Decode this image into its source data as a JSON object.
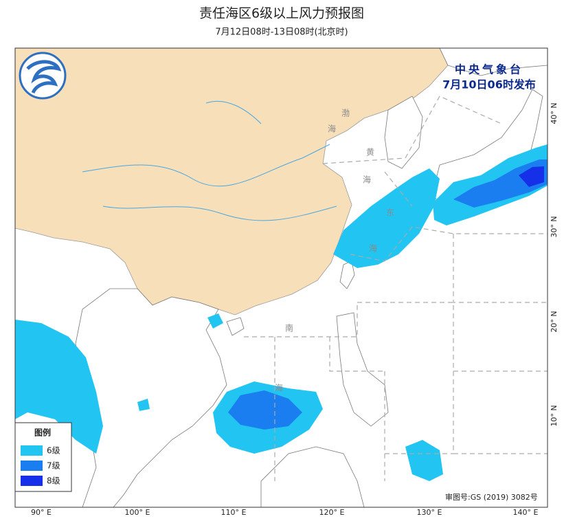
{
  "header": {
    "title": "责任海区6级以上风力预报图",
    "subtitle": "7月12日08时-13日08时(北京时)"
  },
  "issuer": {
    "name": "中央气象台",
    "time": "7月10日06时发布"
  },
  "legend": {
    "title": "图例",
    "items": [
      {
        "label": "6级",
        "color": "#22c4f2"
      },
      {
        "label": "7级",
        "color": "#1a7ef0"
      },
      {
        "label": "8级",
        "color": "#1530e8"
      }
    ]
  },
  "sea_labels": [
    "渤",
    "海",
    "黄",
    "海",
    "东",
    "海",
    "南",
    "海"
  ],
  "lat_labels": [
    "40° N",
    "30° N",
    "20° N",
    "10° N"
  ],
  "lon_labels": [
    "90° E",
    "100° E",
    "110° E",
    "120° E",
    "130° E",
    "140° E"
  ],
  "approval": "审图号:GS (2019) 3082号"
}
